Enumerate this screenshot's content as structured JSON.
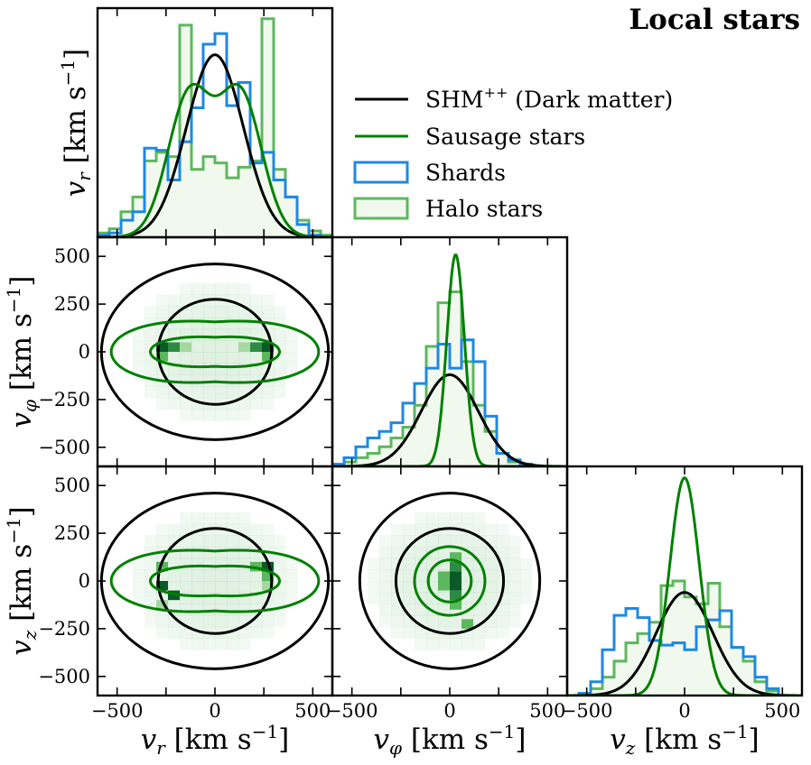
{
  "title": "Local stars",
  "legend": [
    {
      "label_main": "SHM",
      "label_sup": "++",
      "label_rest": " (Dark matter)",
      "kind": "line",
      "color": "#000000"
    },
    {
      "label_main": "Sausage stars",
      "label_sup": "",
      "label_rest": "",
      "kind": "line",
      "color": "#008000"
    },
    {
      "label_main": "Shards",
      "label_sup": "",
      "label_rest": "",
      "kind": "box",
      "color": "#1e88e5"
    },
    {
      "label_main": "Halo stars",
      "label_sup": "",
      "label_rest": "",
      "kind": "box",
      "color": "#5cb85c"
    }
  ],
  "axis_labels": {
    "vr": {
      "sym": "v",
      "sub": "r",
      "unit": " [km s",
      "exp": "−1",
      "close": "]"
    },
    "vphi": {
      "sym": "v",
      "sub": "φ",
      "unit": " [km s",
      "exp": "−1",
      "close": "]"
    },
    "vz": {
      "sym": "v",
      "sub": "z",
      "unit": " [km s",
      "exp": "−1",
      "close": "]"
    }
  },
  "chart_data": {
    "type": "corner",
    "title": "Local stars",
    "axis_range": [
      -600,
      600
    ],
    "ticks": [
      -500,
      -250,
      0,
      250,
      500
    ],
    "bottom_ticks": [
      -500,
      0,
      500
    ],
    "tick_labels": [
      "−500",
      "−250",
      "0",
      "250",
      "500"
    ],
    "bottom_tick_labels": [
      "−500",
      "0",
      "500"
    ],
    "bin_edges": [
      -600,
      -540,
      -480,
      -420,
      -360,
      -300,
      -240,
      -180,
      -120,
      -60,
      0,
      60,
      120,
      180,
      240,
      300,
      360,
      420,
      480,
      540,
      600
    ],
    "colors": {
      "shm": "#000000",
      "sausage": "#008000",
      "shards": "#1e88e5",
      "halo": "#5cb85c",
      "halo_fill": "#f1f9ee"
    },
    "diagonal": [
      {
        "variable": "vr",
        "ymax": 1.08,
        "shm": {
          "mean": 0,
          "sigma": 145,
          "peak": 0.86
        },
        "sausage": [
          {
            "mean": -130,
            "sigma": 110,
            "peak": 0.67
          },
          {
            "mean": 130,
            "sigma": 110,
            "peak": 0.67
          }
        ],
        "shards": [
          0.01,
          0.02,
          0.08,
          0.12,
          0.42,
          0.41,
          0.27,
          0.45,
          0.61,
          0.91,
          0.96,
          0.62,
          0.73,
          0.35,
          0.4,
          0.27,
          0.19,
          0.06,
          0.01,
          0.0
        ],
        "halo": [
          0.02,
          0.04,
          0.12,
          0.19,
          0.36,
          0.4,
          0.38,
          1.0,
          0.32,
          0.38,
          0.35,
          0.28,
          0.33,
          0.36,
          1.03,
          0.32,
          0.19,
          0.08,
          0.03,
          0.01
        ]
      },
      {
        "variable": "vphi",
        "ymax": 1.05,
        "shm": {
          "mean": 0,
          "sigma": 145,
          "peak": 0.42
        },
        "sausage": [
          {
            "mean": 30,
            "sigma": 45,
            "peak": 0.97
          }
        ],
        "shards": [
          0.01,
          0.04,
          0.09,
          0.13,
          0.16,
          0.2,
          0.29,
          0.38,
          0.45,
          0.56,
          0.45,
          0.58,
          0.48,
          0.23,
          0.06,
          0.03,
          0.01,
          0.0,
          0.0,
          0.0
        ],
        "halo": [
          0.01,
          0.02,
          0.04,
          0.06,
          0.09,
          0.13,
          0.18,
          0.28,
          0.55,
          0.75,
          0.8,
          0.48,
          0.28,
          0.16,
          0.06,
          0.02,
          0.01,
          0.0,
          0.0,
          0.0
        ]
      },
      {
        "variable": "vz",
        "ymax": 1.0,
        "shm": {
          "mean": 0,
          "sigma": 145,
          "peak": 0.45
        },
        "sausage": [
          {
            "mean": 0,
            "sigma": 75,
            "peak": 0.95
          }
        ],
        "shards": [
          0.0,
          0.01,
          0.06,
          0.2,
          0.35,
          0.38,
          0.34,
          0.24,
          0.22,
          0.23,
          0.2,
          0.3,
          0.33,
          0.37,
          0.21,
          0.17,
          0.08,
          0.03,
          0.0,
          0.0
        ],
        "halo": [
          0.0,
          0.01,
          0.03,
          0.08,
          0.15,
          0.23,
          0.27,
          0.32,
          0.48,
          0.5,
          0.43,
          0.4,
          0.49,
          0.3,
          0.21,
          0.15,
          0.06,
          0.02,
          0.0,
          0.0
        ]
      }
    ],
    "offdiagonal": [
      {
        "x": "vr",
        "y": "vphi",
        "shm_ellipses": [
          {
            "cx": 0,
            "cy": 0,
            "rx": 290,
            "ry": 275
          },
          {
            "cx": 0,
            "cy": 0,
            "rx": 580,
            "ry": 460
          }
        ],
        "sausage_rx": [
          330,
          530
        ],
        "sausage_ry": [
          95,
          195
        ],
        "sausage_pinch": 0.22,
        "blobs": [
          {
            "vx": -270,
            "vy": 25,
            "w": 1.0
          },
          {
            "vx": -210,
            "vy": 25,
            "w": 0.7
          },
          {
            "vx": -270,
            "vy": -25,
            "w": 0.5
          },
          {
            "vx": 270,
            "vy": 25,
            "w": 1.0
          },
          {
            "vx": 210,
            "vy": 25,
            "w": 0.7
          },
          {
            "vx": 270,
            "vy": -25,
            "w": 0.5
          },
          {
            "vx": -150,
            "vy": 25,
            "w": 0.3
          },
          {
            "vx": 150,
            "vy": 25,
            "w": 0.3
          }
        ]
      },
      {
        "x": "vr",
        "y": "vz",
        "shm_ellipses": [
          {
            "cx": 0,
            "cy": 0,
            "rx": 290,
            "ry": 275
          },
          {
            "cx": 0,
            "cy": 0,
            "rx": 580,
            "ry": 460
          }
        ],
        "sausage_rx": [
          330,
          530
        ],
        "sausage_ry": [
          95,
          195
        ],
        "sausage_pinch": 0.22,
        "blobs": [
          {
            "vx": -270,
            "vy": -25,
            "w": 0.9
          },
          {
            "vx": -210,
            "vy": -75,
            "w": 1.0
          },
          {
            "vx": -270,
            "vy": 75,
            "w": 0.5
          },
          {
            "vx": 270,
            "vy": 75,
            "w": 0.9
          },
          {
            "vx": 210,
            "vy": 75,
            "w": 0.6
          },
          {
            "vx": 270,
            "vy": 25,
            "w": 0.5
          },
          {
            "vx": -270,
            "vy": -125,
            "w": 0.4
          },
          {
            "vx": 270,
            "vy": -25,
            "w": 0.4
          }
        ]
      },
      {
        "x": "vphi",
        "y": "vz",
        "shm_ellipses": [
          {
            "cx": 0,
            "cy": 0,
            "rx": 275,
            "ry": 275
          },
          {
            "cx": 0,
            "cy": 0,
            "rx": 460,
            "ry": 460
          }
        ],
        "sausage_circles": [
          110,
          180
        ],
        "blobs": [
          {
            "vx": 30,
            "vy": 25,
            "w": 1.0
          },
          {
            "vx": 30,
            "vy": -25,
            "w": 0.9
          },
          {
            "vx": 30,
            "vy": 75,
            "w": 0.7
          },
          {
            "vx": 30,
            "vy": -75,
            "w": 0.8
          },
          {
            "vx": 30,
            "vy": 125,
            "w": 0.5
          },
          {
            "vx": 30,
            "vy": -125,
            "w": 0.5
          },
          {
            "vx": -30,
            "vy": 25,
            "w": 0.5
          },
          {
            "vx": -30,
            "vy": -25,
            "w": 0.5
          },
          {
            "vx": 90,
            "vy": -225,
            "w": 0.6
          }
        ]
      }
    ]
  }
}
